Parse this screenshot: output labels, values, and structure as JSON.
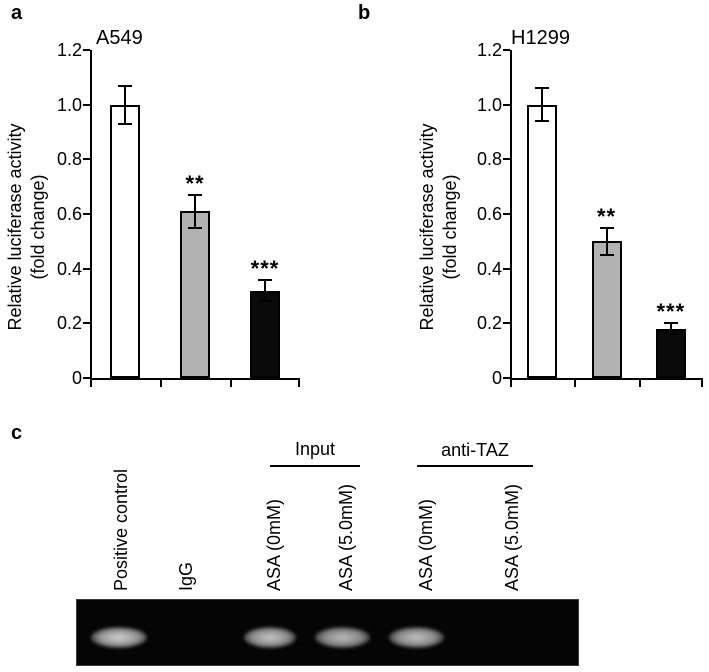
{
  "panels": {
    "a": {
      "letter": "a"
    },
    "b": {
      "letter": "b"
    },
    "c": {
      "letter": "c"
    }
  },
  "chart_data": [
    {
      "panel": "a",
      "type": "bar",
      "title": "A549",
      "ylabel": "Relative luciferase activity",
      "ylabel2": "(fold change)",
      "xlabel": "",
      "ylim": [
        0,
        1.2
      ],
      "grid": false,
      "legend": "none",
      "yticks": [
        {
          "v": 0,
          "label": "0"
        },
        {
          "v": 0.2,
          "label": "0.2"
        },
        {
          "v": 0.4,
          "label": "0.4"
        },
        {
          "v": 0.6,
          "label": "0.6"
        },
        {
          "v": 0.8,
          "label": "0.8"
        },
        {
          "v": 1.0,
          "label": "1.0"
        },
        {
          "v": 1.2,
          "label": "1.2"
        }
      ],
      "x_tick_labels": [],
      "bars": [
        {
          "value": 1.0,
          "error": 0.07,
          "fill": "#ffffff",
          "significance": ""
        },
        {
          "value": 0.61,
          "error": 0.06,
          "fill": "#b2b2b2",
          "significance": "**"
        },
        {
          "value": 0.32,
          "error": 0.04,
          "fill": "#0a0a0a",
          "significance": "***"
        }
      ]
    },
    {
      "panel": "b",
      "type": "bar",
      "title": "H1299",
      "ylabel": "Relative luciferase activity",
      "ylabel2": "(fold change)",
      "xlabel": "",
      "ylim": [
        0,
        1.2
      ],
      "grid": false,
      "legend": "none",
      "yticks": [
        {
          "v": 0,
          "label": "0"
        },
        {
          "v": 0.2,
          "label": "0.2"
        },
        {
          "v": 0.4,
          "label": "0.4"
        },
        {
          "v": 0.6,
          "label": "0.6"
        },
        {
          "v": 0.8,
          "label": "0.8"
        },
        {
          "v": 1.0,
          "label": "1.0"
        },
        {
          "v": 1.2,
          "label": "1.2"
        }
      ],
      "x_tick_labels": [],
      "bars": [
        {
          "value": 1.0,
          "error": 0.06,
          "fill": "#ffffff",
          "significance": ""
        },
        {
          "value": 0.5,
          "error": 0.05,
          "fill": "#b2b2b2",
          "significance": "**"
        },
        {
          "value": 0.18,
          "error": 0.02,
          "fill": "#0a0a0a",
          "significance": "***"
        }
      ]
    }
  ],
  "panel_c": {
    "groups": [
      {
        "label": "Input"
      },
      {
        "label": "anti-TAZ"
      }
    ],
    "lanes": [
      {
        "label": "Positive control",
        "group": "",
        "band": true,
        "band_intensity": 0.95
      },
      {
        "label": "IgG",
        "group": "",
        "band": false,
        "band_intensity": 0
      },
      {
        "label": "ASA (0mM)",
        "group": "Input",
        "band": true,
        "band_intensity": 0.9
      },
      {
        "label": "ASA (5.0mM)",
        "group": "Input",
        "band": true,
        "band_intensity": 0.85
      },
      {
        "label": "ASA (0mM)",
        "group": "anti-TAZ",
        "band": true,
        "band_intensity": 0.88
      },
      {
        "label": "ASA (5.0mM)",
        "group": "anti-TAZ",
        "band": false,
        "band_intensity": 0
      }
    ],
    "gel_background": "#050505",
    "band_color": "#c9c9c9"
  }
}
